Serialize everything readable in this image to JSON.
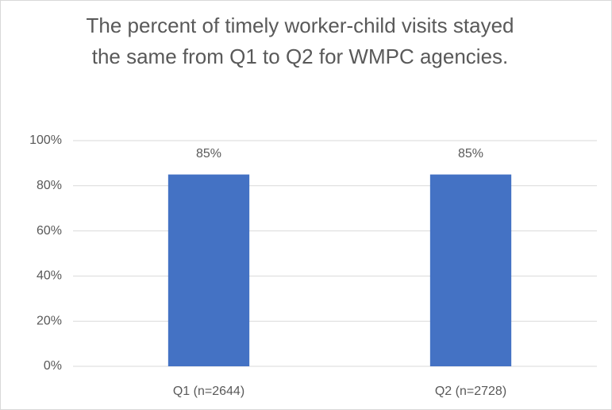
{
  "chart_data": {
    "type": "bar",
    "title": "The percent of timely worker-child visits stayed the same from Q1 to Q2 for WMPC agencies.",
    "categories": [
      "Q1 (n=2644)",
      "Q2 (n=2728)"
    ],
    "values": [
      85,
      85
    ],
    "value_labels": [
      "85%",
      "85%"
    ],
    "color": "#4472c4",
    "ylim": [
      0,
      100
    ],
    "yticks": [
      {
        "value": 0,
        "label": "0%"
      },
      {
        "value": 20,
        "label": "20%"
      },
      {
        "value": 40,
        "label": "40%"
      },
      {
        "value": 60,
        "label": "60%"
      },
      {
        "value": 80,
        "label": "80%"
      },
      {
        "value": 100,
        "label": "100%"
      }
    ],
    "grid": true
  }
}
